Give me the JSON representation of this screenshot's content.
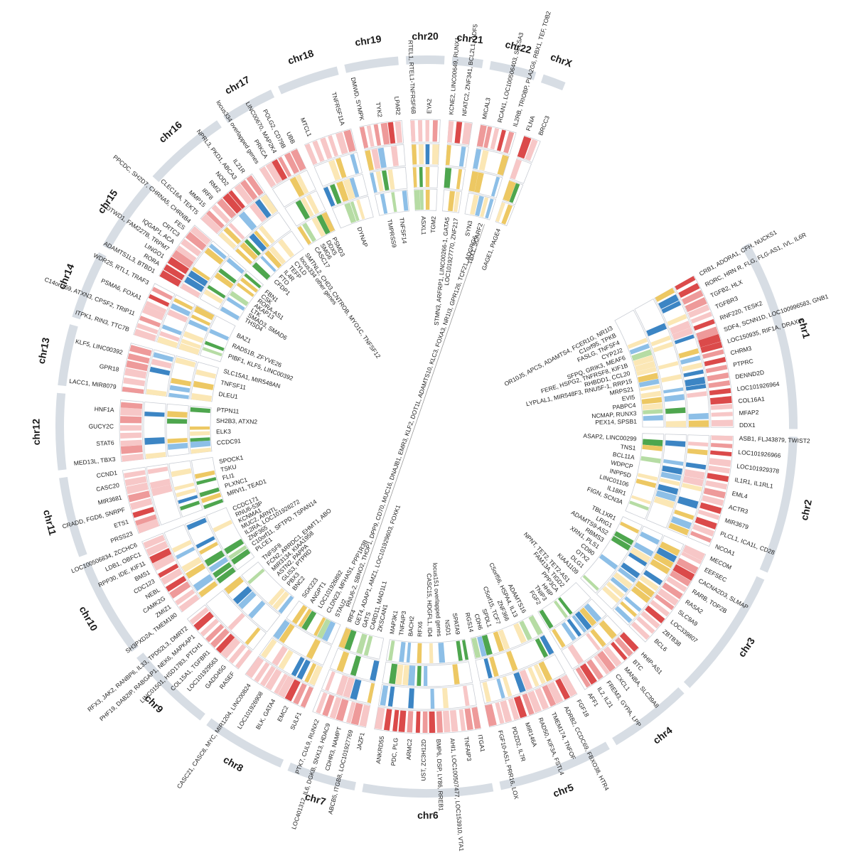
{
  "colors": {
    "chromosome_band": "#d7dde4",
    "ring_background": "#ffffff",
    "ring_border": "#c9cdd4",
    "light_pink": "#f7c7c7",
    "pink": "#ee9a9a",
    "red": "#db4a4a",
    "light_yellow": "#fbe7b5",
    "yellow": "#edc863",
    "blue": "#3c85c4",
    "light_blue": "#8dbfe7",
    "green": "#4ea64e",
    "light_green": "#b6dca4",
    "link_line": "#999999"
  },
  "center_link_label": "RNU6-2, SBNO2, THOP1, DPP9, CD70, MUC16, DNAJB1, EMR3, KLF2, DOT1L, ADAMTS10, KLC3, FOXA3, NR1I3, GPR126, TCF21, ADGRG6",
  "chromosomes": [
    {
      "name": "chr1",
      "start": 64,
      "end": 114,
      "genes": [
        "CRB1, ADORA1, CFH, NUCKS1",
        "OR10J5, APCS, ADAMTS4, FCER1G, NR1I3",
        "RORC, HRN R, FLG, FLG-AS1, IVL, IL6R",
        "C1orf95, TPKB",
        "TGFB2, HLX",
        "FASLG, TNFSF4",
        "TGFBR3",
        "CYP2J2",
        "RNF220, TESK2",
        "SFPQ, GRIK3, MEAF6",
        "SDF4, SCNN1D, LOC100996583, GNB1",
        "FERE, HSPG2, TNFRSF8, KIF1B",
        "LOC150935, RIF1A, DRAXIN",
        "RHBDD1, CCL20",
        "CHRM3",
        "LYPLAL1, MIR548F3, RNU5F-1, RRP15",
        "PTPRC",
        "MRPS21",
        "DENND2D",
        "EVI5",
        "LOC101926964",
        "PABPC4",
        "COL16A1",
        "NCMAP, RUNX3",
        "MFAP2",
        "PEX14, SPSB1",
        "DDX1"
      ]
    },
    {
      "name": "chr2",
      "start": 116,
      "end": 152,
      "genes": [
        "ASB1, FLJ43879, TWIST2",
        "ASAP2, LINC00299",
        "LOC101926966",
        "TNS1",
        "LOC101929378",
        "BCL11A",
        "IL1R1, IL1RL1",
        "WDPCP",
        "EML4",
        "INPP5D",
        "ACTR3",
        "LINC01106",
        "MIR3679",
        "IL18R1",
        "PLCL1, ICA1L, CD28",
        "FIGN, SCN3A",
        "NCOA1"
      ]
    },
    {
      "name": "chr3",
      "start": 154,
      "end": 188,
      "genes": [
        "MECOM",
        "TBL1XR1",
        "EEFSEC",
        "LRIG1",
        "CACNA2D3, SLMAP",
        "ADAMTS9-AS2",
        "RARB, TOP2B",
        "RBMS3",
        "RASA2",
        "XRN1, PLS1",
        "SLC9A9",
        "CD80",
        "LOC339807",
        "OTX2",
        "ZBTB38",
        "DLG1",
        "BCL6",
        "KIAA1109"
      ]
    },
    {
      "name": "chr4",
      "start": 190,
      "end": 212,
      "genes": [
        "HHIP-AS1",
        "NPNT, TET2, TET2-AS1",
        "BTC",
        "FAM13A, TIGD2",
        "MANBA, SLC39A8",
        "PPP3CA",
        "CXCL1",
        "HHIP",
        "FREM3, GYPA, LPP",
        "TNIP3",
        "IL2, IL21",
        "FGF2",
        "AFF1"
      ]
    },
    {
      "name": "chr5",
      "start": 214,
      "end": 244,
      "genes": [
        "FGF18",
        "ADAMTS16",
        "ADRB2, CCDC69, FBXO38, HTR4",
        "C5orf56, HSPA4, IL13",
        "TMEM174, TNFOF",
        "ZNF366",
        "RAD50, KIF3A, FSTL4",
        "C5orf15, TCF7",
        "MIR146A",
        "SPDL1",
        "PDZD2, IL7R",
        "CDH6",
        "FGF10-AS1, PRR16, LOX",
        "RGS14"
      ]
    },
    {
      "name": "chr6",
      "start": 246,
      "end": 280,
      "genes": [
        "ITGA1",
        "SPATA9",
        "TNFAIP3",
        "NSD1",
        "AHI1, LOC100507477, LOC153910, VTA1",
        "locus151 overlapped genes",
        "BMP6, DSP, LY86, RREB1",
        "CASC15, HDGFL1, ID4",
        "UST, ZC3H12D",
        "RFX6",
        "ARMC2",
        "BACH2",
        "PDC, PLG",
        "TNFAIP3",
        "ANKRD55",
        "MAP3K1"
      ]
    },
    {
      "name": "chr7",
      "start": 282,
      "end": 300,
      "genes": [
        "JAZF1",
        "ZKSCAN1",
        "ABCB5, ITGB8, LOC101927769",
        "CARD11, MAD1L1",
        "CDHR3, NAMPT",
        "GATS",
        "LOC401312, IL6, DGKB, SNX13, HDAC9",
        "GET4, ADAP1, AMZ1, LOC101929603, FOXK1",
        "PTK7, CUL9, RUNX2",
        "IRF4"
      ]
    },
    {
      "name": "chr8",
      "start": 302,
      "end": 324,
      "genes": [
        "SULF1",
        "STAU2",
        "EMC2",
        "CLDN23, MFHAS1, PPP1R3B",
        "BLK, GATA4",
        "LOC101926892",
        "LOC101926908",
        "ANGPT1",
        "CASC21, CASC8, MYC, MIR1204, LINC00824",
        "SGK223"
      ]
    },
    {
      "name": "chr9",
      "start": 326,
      "end": 349,
      "genes": [
        "RASEF",
        "BNC2",
        "GADD45G",
        "PBX3",
        "LOC101929563",
        "GLIS3, PTPRD",
        "COL15A1, TGFBR1",
        "ASTN2, PAPPA",
        "LINC01501, HSD17B3, PTCH1",
        "MIR3134, KIAA1958",
        "PHF19, DAB2IP, RABGAP1, NEK6, MAPKAP1",
        "FCN2, ARRDC1, EHMT1, ABO",
        "RFX3, JAK2, RANBP6, IL33, TPD52L3, DMRT2",
        "TNFSF8"
      ]
    },
    {
      "name": "chr10",
      "start": 351,
      "end": 377,
      "genes": [
        "SH3PXD2A, TMEM180",
        "PLCE1",
        "ZMIZ1",
        "C10orf11, SFTPD, TSPAN14",
        "CAMK2G",
        "ZNF365",
        "NEBL",
        "IL2RA, LOC101928272",
        "CDC123",
        "MUC2, ARNTL",
        "BMS1",
        "KCNMA1",
        "RPP30, IDE, KIF11",
        "RNU6-53P",
        "LDB1, OBFC1",
        "CCDC171",
        "LOC100506834, ZCCHC6"
      ]
    },
    {
      "name": "chr11",
      "start": 379,
      "end": 400,
      "genes": [
        "PRSS23",
        "MRVI1, TEAD1",
        "ETS1",
        "PLXNC1",
        "CRADD, FGD6, SNRPF",
        "FLI1",
        "MIR3681",
        "TSKU",
        "CASC20",
        "SPOCK1",
        "CCND1"
      ]
    },
    {
      "name": "chr12",
      "start": 402,
      "end": 422,
      "genes": [
        "MED13L, TBX3",
        "CCDC91",
        "STAT6",
        "ELK3",
        "GUCY2C",
        "SH2B3, ATXN2",
        "HNF1A",
        "PTPN11"
      ]
    },
    {
      "name": "chr13",
      "start": 424,
      "end": 440,
      "genes": [
        "LACC1, MIR8079",
        "DLEU1",
        "GPR18",
        "TNFSF11",
        "KLF5, LINC00392",
        "SLC15A1, MIR548AN"
      ]
    },
    {
      "name": "chr14",
      "start": 442,
      "end": 460,
      "genes": [
        "ITPK1, RIN3, TTC7B",
        "PIBF1, KLF5, LINC00392",
        "C14orf159, ATXN3, CPSF2, TRIP11",
        "RAD51B, ZFYVE26",
        "PSMA6, FOXA1",
        "BAZ1",
        "WDR25, RTL1, TRAF3"
      ]
    },
    {
      "name": "chr15",
      "start": 462,
      "end": 482,
      "genes": [
        "ADAMTS1L3, BTBD1",
        "THSD4",
        "RORA",
        "SMAD3, SMAD6",
        "LINGO1",
        "LTK",
        "DTWD1, FAM227B, TRPM7",
        "AKAP13",
        "IQGAP1, ACA",
        "RORA-AS1",
        "CRTC3",
        "CSK",
        "FES",
        "FBN1",
        "PPCDC, SH2D7, CHRNA5, CHRNB4"
      ]
    },
    {
      "name": "chr16",
      "start": 484,
      "end": 506,
      "genes": [
        "CLEC16A, TEKT5",
        "CFDP1",
        "MMP15",
        "FTO",
        "IRF8",
        "IL4R",
        "RMI2",
        "TEFP",
        "NOD2",
        "CYLD",
        "NPRL3, PKD1, ABCA3",
        "locus334 other genes",
        "IL21R",
        "SMTNL2, CHD3, CNTROB, MYO1C, TNFSF12"
      ]
    },
    {
      "name": "chr17",
      "start": 508,
      "end": 522,
      "genes": [
        "locus334 overlapped genes",
        "CASC17",
        "PRKCA",
        "SMG6",
        "LINC00670, MAP2K4",
        "DDX5",
        "POLG2, CD79B",
        "PSMD3",
        "UBB"
      ]
    },
    {
      "name": "chr18",
      "start": 524,
      "end": 540,
      "genes": [
        "MTCL1",
        "DYNAP",
        "TNFRSF11A"
      ]
    },
    {
      "name": "chr19",
      "start": 542,
      "end": 556,
      "genes": [
        "DMWD, SYMPK",
        "TMPRSS9",
        "TYK2",
        "TNFSF14",
        "LPAR2"
      ]
    },
    {
      "name": "chr20",
      "start": 558,
      "end": 568,
      "genes": [
        "RTEL1, RTEL1-TNFRSF6B",
        "ASXL1",
        "EYA2",
        "TGM2"
      ]
    },
    {
      "name": "chr21",
      "start": 570,
      "end": 578,
      "genes": [
        "KCNE2, LINC00649, RUNX1",
        "STMN3, ARFRP1, LINC00266-1, GATA5",
        "NFATC2, ZNF341, BCL2L1, GDF5",
        "LOC101927770, ZNF217"
      ]
    },
    {
      "name": "chr22",
      "start": 580,
      "end": 592,
      "genes": [
        "MICAL3",
        "SYN3",
        "RCAN1, LOC100506403, SLC5A3",
        "TBX1, SCARF2",
        "IL2RB, TRIOBP, PLA2G6, RBX1, TEF, TOB2"
      ]
    },
    {
      "name": "chrX",
      "start": 594,
      "end": 600,
      "genes": [
        "FLNA",
        "GAGE1, PAGE4",
        "BRCC3"
      ]
    }
  ]
}
